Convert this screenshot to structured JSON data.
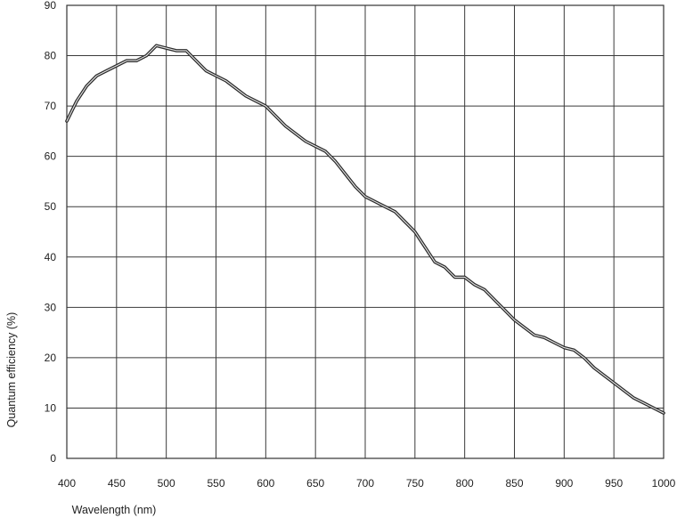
{
  "chart_data": {
    "type": "line",
    "title": "",
    "xlabel": "Wavelength (nm)",
    "ylabel": "Quantum efficiency (%)",
    "xlim": [
      400,
      1000
    ],
    "ylim": [
      0,
      90
    ],
    "x_ticks": [
      400,
      450,
      500,
      550,
      600,
      650,
      700,
      750,
      800,
      850,
      900,
      950,
      1000
    ],
    "y_ticks": [
      0,
      10,
      20,
      30,
      40,
      50,
      60,
      70,
      80,
      90
    ],
    "grid": true,
    "legend": "none",
    "series": [
      {
        "color": "#2b2b2b",
        "x": [
          400,
          410,
          420,
          430,
          440,
          450,
          460,
          470,
          480,
          490,
          500,
          510,
          520,
          530,
          540,
          550,
          560,
          570,
          580,
          590,
          600,
          610,
          620,
          630,
          640,
          650,
          660,
          670,
          680,
          690,
          700,
          710,
          720,
          730,
          740,
          750,
          760,
          770,
          780,
          790,
          800,
          810,
          820,
          830,
          840,
          850,
          860,
          870,
          880,
          890,
          900,
          910,
          920,
          930,
          940,
          950,
          960,
          970,
          980,
          990,
          1000
        ],
        "y": [
          67,
          71,
          74,
          76,
          77,
          78,
          79,
          79,
          80,
          82,
          81.5,
          81,
          81,
          79,
          77,
          76,
          75,
          73.5,
          72,
          71,
          70,
          68,
          66,
          64.5,
          63,
          62,
          61,
          59,
          56.5,
          54,
          52,
          51,
          50,
          49,
          47,
          45,
          42,
          39,
          38,
          36,
          36,
          34.5,
          33.5,
          31.5,
          29.5,
          27.5,
          26,
          24.5,
          24,
          23,
          22,
          21.5,
          20,
          18,
          16.5,
          15,
          13.5,
          12,
          11,
          10,
          9
        ]
      }
    ]
  }
}
